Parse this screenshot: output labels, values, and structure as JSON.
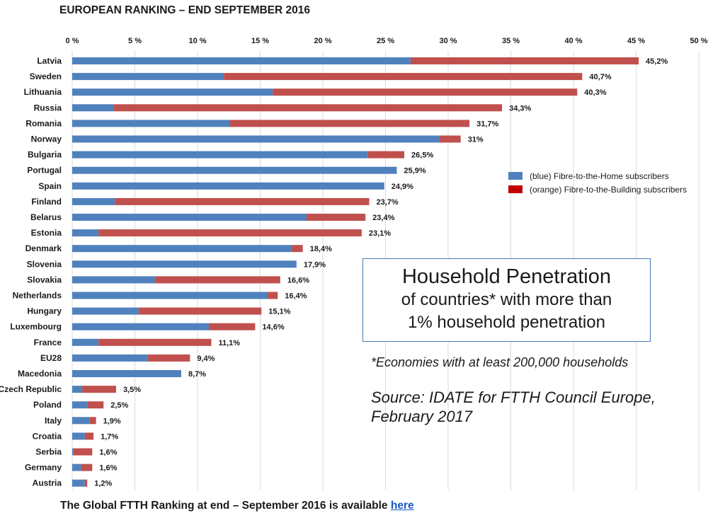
{
  "page": {
    "title": "EUROPEAN RANKING – END SEPTEMBER 2016",
    "info_box": {
      "heading": "Household Penetration",
      "line1": "of countries* with more than",
      "line2": "1% household penetration"
    },
    "footnote": "*Economies with at least 200,000 households",
    "source_line1": "Source: IDATE for FTTH Council Europe,",
    "source_line2": "February 2017",
    "bottom_text": "The Global FTTH Ranking at end – September 2016 is available",
    "bottom_link": "here"
  },
  "chart_data": {
    "type": "bar",
    "orientation": "horizontal",
    "stacked": true,
    "xlim": [
      0,
      50
    ],
    "x_ticks": [
      {
        "value": 0,
        "label": "0 %"
      },
      {
        "value": 5,
        "label": "5 %"
      },
      {
        "value": 10,
        "label": "10 %"
      },
      {
        "value": 15,
        "label": "15 %"
      },
      {
        "value": 20,
        "label": "20 %"
      },
      {
        "value": 25,
        "label": "25 %"
      },
      {
        "value": 30,
        "label": "30 %"
      },
      {
        "value": 35,
        "label": "35 %"
      },
      {
        "value": 40,
        "label": "40 %"
      },
      {
        "value": 45,
        "label": "45 %"
      },
      {
        "value": 50,
        "label": "50 %"
      }
    ],
    "grid": true,
    "legend_position": "right",
    "colors": {
      "ftth": "#4f81bd",
      "fttb": "#c0504d"
    },
    "categories": [
      "Latvia",
      "Sweden",
      "Lithuania",
      "Russia",
      "Romania",
      "Norway",
      "Bulgaria",
      "Portugal",
      "Spain",
      "Finland",
      "Belarus",
      "Estonia",
      "Denmark",
      "Slovenia",
      "Slovakia",
      "Netherlands",
      "Hungary",
      "Luxembourg",
      "France",
      "EU28",
      "Macedonia",
      "Czech Republic",
      "Poland",
      "Italy",
      "Croatia",
      "Serbia",
      "Germany",
      "Austria"
    ],
    "series": [
      {
        "name": "(blue) Fibre-to-the-Home subscribers",
        "values": [
          27.0,
          12.1,
          16.0,
          3.3,
          12.6,
          29.3,
          23.6,
          25.9,
          24.9,
          3.4,
          18.7,
          2.1,
          17.5,
          17.9,
          6.6,
          15.6,
          5.3,
          10.9,
          2.1,
          6.0,
          8.7,
          0.8,
          1.2,
          1.4,
          1.0,
          0.1,
          0.7,
          1.0
        ]
      },
      {
        "name": "(orange) Fibre-to-the-Building subscribers",
        "values": [
          18.2,
          28.6,
          24.3,
          31.0,
          19.1,
          1.7,
          2.9,
          0.0,
          0.0,
          20.3,
          4.7,
          21.0,
          0.9,
          0.0,
          10.0,
          0.8,
          9.8,
          3.7,
          9.0,
          3.4,
          0.0,
          2.7,
          1.3,
          0.5,
          0.7,
          1.5,
          0.9,
          0.2
        ]
      }
    ],
    "data_labels": [
      "45,2%",
      "40,7%",
      "40,3%",
      "34,3%",
      "31,7%",
      "31%",
      "26,5%",
      "25,9%",
      "24,9%",
      "23,7%",
      "23,4%",
      "23,1%",
      "18,4%",
      "17,9%",
      "16,6%",
      "16,4%",
      "15,1%",
      "14,6%",
      "11,1%",
      "9,4%",
      "8,7%",
      "3,5%",
      "2,5%",
      "1,9%",
      "1,7%",
      "1,6%",
      "1,6%",
      "1,2%"
    ]
  }
}
